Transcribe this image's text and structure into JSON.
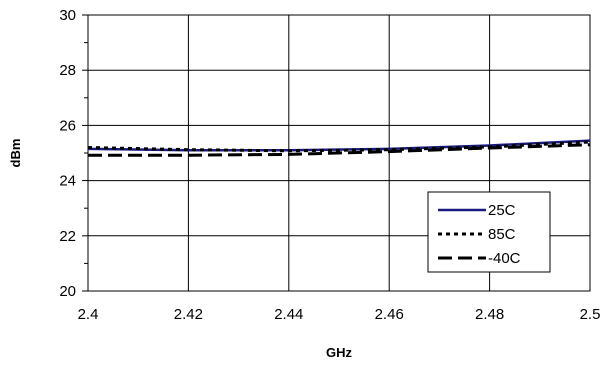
{
  "chart_data": {
    "type": "line",
    "xlabel": "GHz",
    "ylabel": "dBm",
    "xlim": [
      2.4,
      2.5
    ],
    "ylim": [
      20,
      30
    ],
    "xticks": [
      "2.4",
      "2.42",
      "2.44",
      "2.46",
      "2.48",
      "2.5"
    ],
    "yticks": [
      "20",
      "22",
      "24",
      "26",
      "28",
      "30"
    ],
    "grid": true,
    "legend_position": "bottom-right",
    "series": [
      {
        "name": "25C",
        "color": "#1a1a80",
        "style": "solid",
        "x": [
          2.4,
          2.42,
          2.44,
          2.46,
          2.48,
          2.5
        ],
        "y": [
          25.15,
          25.1,
          25.1,
          25.15,
          25.27,
          25.45
        ]
      },
      {
        "name": "85C",
        "color": "#000000",
        "style": "dotted",
        "x": [
          2.4,
          2.42,
          2.44,
          2.46,
          2.48,
          2.5
        ],
        "y": [
          25.2,
          25.12,
          25.08,
          25.12,
          25.22,
          25.4
        ]
      },
      {
        "name": "-40C",
        "color": "#000000",
        "style": "dashed",
        "x": [
          2.4,
          2.42,
          2.44,
          2.46,
          2.48,
          2.5
        ],
        "y": [
          24.92,
          24.92,
          24.95,
          25.05,
          25.18,
          25.3
        ]
      }
    ]
  }
}
